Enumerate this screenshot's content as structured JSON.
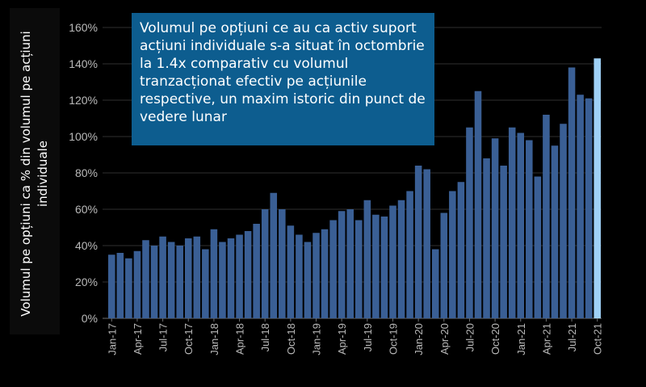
{
  "chart_data": {
    "type": "bar",
    "ylabel": "Volumul pe opțiuni ca % din volumul pe acțiuni individuale",
    "annotation": "Volumul pe opțiuni ce au ca activ suport acțiuni individuale s-a situat în octombrie la 1.4x comparativ cu volumul tranzacționat efectiv pe acțiunile respective, un maxim istoric din punct de vedere lunar",
    "ylim": [
      0,
      160
    ],
    "ytick_values": [
      0,
      20,
      40,
      60,
      80,
      100,
      120,
      140,
      160
    ],
    "ytick_labels": [
      "0%",
      "20%",
      "40%",
      "60%",
      "80%",
      "100%",
      "120%",
      "140%",
      "160%"
    ],
    "grid": true,
    "categories": [
      "Jan-17",
      "Feb-17",
      "Mar-17",
      "Apr-17",
      "May-17",
      "Jun-17",
      "Jul-17",
      "Aug-17",
      "Sep-17",
      "Oct-17",
      "Nov-17",
      "Dec-17",
      "Jan-18",
      "Feb-18",
      "Mar-18",
      "Apr-18",
      "May-18",
      "Jun-18",
      "Jul-18",
      "Aug-18",
      "Sep-18",
      "Oct-18",
      "Nov-18",
      "Dec-18",
      "Jan-19",
      "Feb-19",
      "Mar-19",
      "Apr-19",
      "May-19",
      "Jun-19",
      "Jul-19",
      "Aug-19",
      "Sep-19",
      "Oct-19",
      "Nov-19",
      "Dec-19",
      "Jan-20",
      "Feb-20",
      "Mar-20",
      "Apr-20",
      "May-20",
      "Jun-20",
      "Jul-20",
      "Aug-20",
      "Sep-20",
      "Oct-20",
      "Nov-20",
      "Dec-20",
      "Jan-21",
      "Feb-21",
      "Mar-21",
      "Apr-21",
      "May-21",
      "Jun-21",
      "Jul-21",
      "Aug-21",
      "Sep-21",
      "Oct-21"
    ],
    "tick_labels": [
      "Jan-17",
      "Apr-17",
      "Jul-17",
      "Oct-17",
      "Jan-18",
      "Apr-18",
      "Jul-18",
      "Oct-18",
      "Jan-19",
      "Apr-19",
      "Jul-19",
      "Oct-19",
      "Jan-20",
      "Apr-20",
      "Jul-20",
      "Oct-20",
      "Jan-21",
      "Apr-21",
      "Jul-21",
      "Oct-21"
    ],
    "values": [
      35,
      36,
      33,
      37,
      43,
      40,
      45,
      42,
      40,
      44,
      45,
      38,
      49,
      42,
      44,
      46,
      48,
      52,
      60,
      69,
      60,
      51,
      46,
      42,
      47,
      49,
      54,
      59,
      60,
      54,
      65,
      57,
      56,
      62,
      65,
      70,
      84,
      82,
      38,
      58,
      70,
      75,
      105,
      125,
      88,
      99,
      84,
      105,
      102,
      98,
      78,
      112,
      95,
      107,
      138,
      123,
      121,
      143
    ],
    "bar_color": "#3a5f95",
    "highlight_color": "#9fd1f7",
    "highlight_index": 57
  }
}
